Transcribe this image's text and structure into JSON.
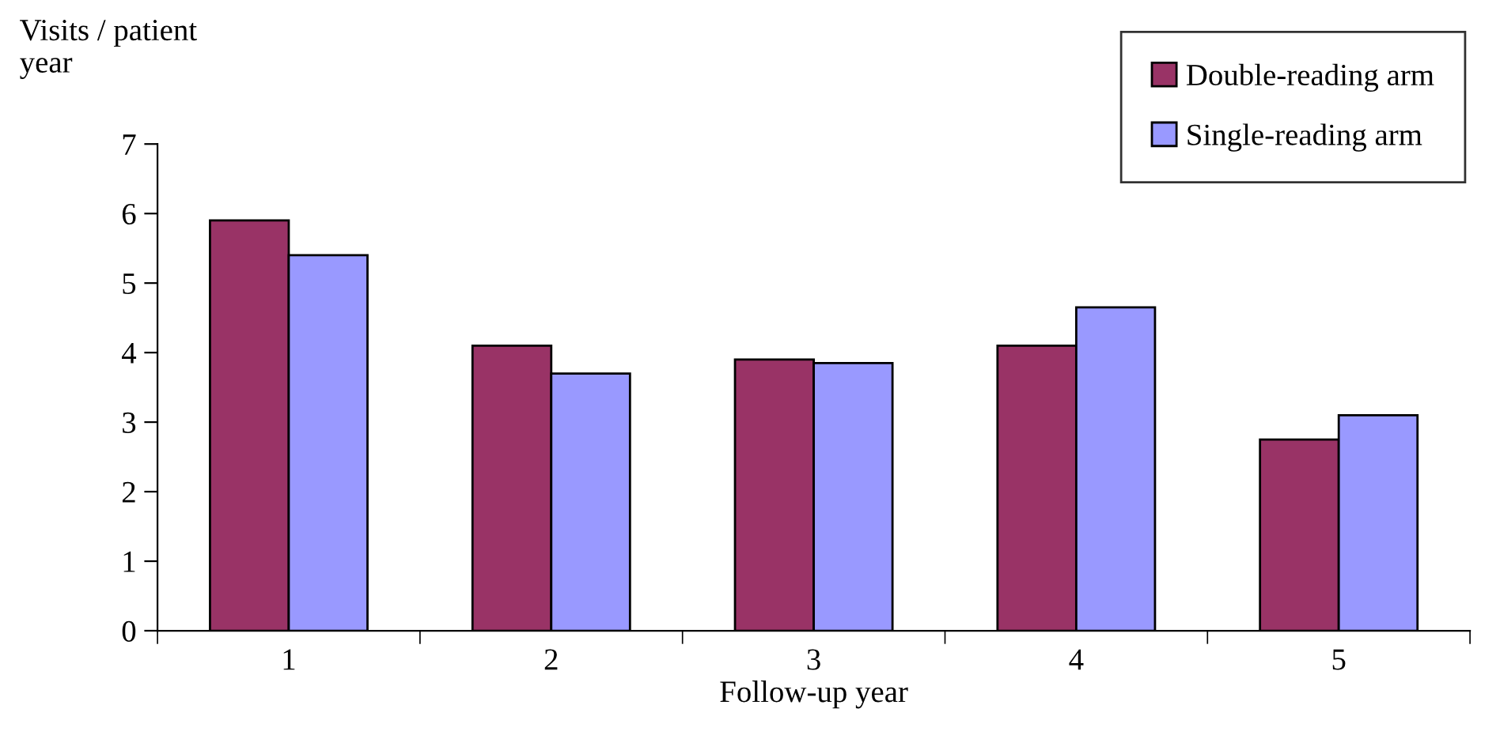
{
  "chart_data": {
    "type": "bar",
    "xlabel": "Follow-up year",
    "ylabel": "Visits / patient\nyear",
    "categories": [
      "1",
      "2",
      "3",
      "4",
      "5"
    ],
    "series": [
      {
        "name": "Double-reading arm",
        "color": "#993366",
        "values": [
          5.9,
          4.1,
          3.9,
          4.1,
          2.75
        ]
      },
      {
        "name": "Single-reading arm",
        "color": "#9999ff",
        "values": [
          5.4,
          3.7,
          3.85,
          4.65,
          3.1
        ]
      }
    ],
    "ylim": [
      0,
      7
    ],
    "yticks": [
      0,
      1,
      2,
      3,
      4,
      5,
      6,
      7
    ],
    "grid": false,
    "legend": "top right"
  }
}
